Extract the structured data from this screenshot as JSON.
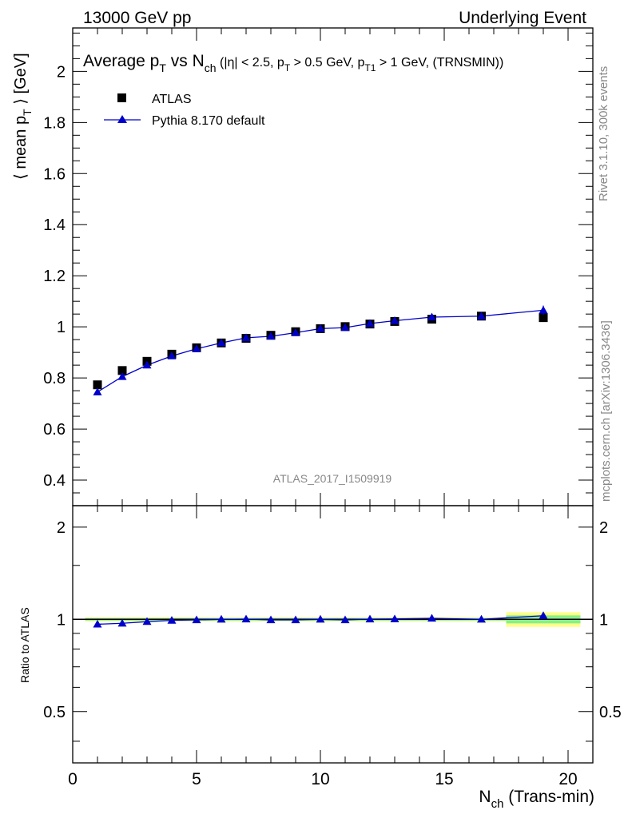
{
  "header": {
    "left": "13000 GeV pp",
    "right": "Underlying Event"
  },
  "title": {
    "main": "Average p",
    "main_sub": "T",
    "vs": " vs N",
    "vs_sub": "ch",
    "cuts_1": " (|η| < 2.5, p",
    "cuts_1_sub": "T",
    "cuts_2": " > 0.5 GeV, p",
    "cuts_2_sub": "T1",
    "cuts_3": " > 1 GeV, (TRNSMIN))"
  },
  "side_text": {
    "rivet": "Rivet 3.1.10,  300k events",
    "mcplots": "mcplots.cern.ch [arXiv:1306.3436]"
  },
  "watermark": "ATLAS_2017_I1509919",
  "legend": {
    "data_label": "ATLAS",
    "mc_label": "Pythia 8.170 default"
  },
  "axes": {
    "ylabel_main_pre": "⟨ mean p",
    "ylabel_main_sub": "T",
    "ylabel_main_post": " ⟩ [GeV]",
    "ylabel_ratio": "Ratio to ATLAS",
    "xlabel_pre": "N",
    "xlabel_sub": "ch",
    "xlabel_post": " (Trans-min)"
  },
  "colors": {
    "data": "#000000",
    "mc": "#0000cc",
    "band_inner": "#88ee88",
    "band_outer": "#ffff88"
  },
  "chart_data": [
    {
      "type": "scatter",
      "xlim": [
        0,
        21
      ],
      "ylim": [
        0.3,
        2.17
      ],
      "yticks": [
        0.4,
        0.6,
        0.8,
        1.0,
        1.2,
        1.4,
        1.6,
        1.8,
        2.0
      ],
      "ytick_labels": [
        "0.4",
        "0.6",
        "0.8",
        "1",
        "1.2",
        "1.4",
        "1.6",
        "1.8",
        "2"
      ],
      "series": [
        {
          "name": "ATLAS",
          "x": [
            1,
            2,
            3,
            4,
            5,
            6,
            7,
            8,
            9,
            10,
            11,
            12,
            13,
            14.5,
            16.5,
            19
          ],
          "values": [
            0.773,
            0.829,
            0.865,
            0.893,
            0.918,
            0.937,
            0.955,
            0.967,
            0.981,
            0.993,
            1.001,
            1.011,
            1.021,
            1.03,
            1.042,
            1.036
          ]
        },
        {
          "name": "Pythia 8.170 default",
          "x": [
            1,
            2,
            3,
            4,
            5,
            6,
            7,
            8,
            9,
            10,
            11,
            12,
            13,
            14.5,
            16.5,
            19
          ],
          "values": [
            0.745,
            0.805,
            0.85,
            0.886,
            0.914,
            0.937,
            0.957,
            0.963,
            0.977,
            0.993,
            0.997,
            1.013,
            1.024,
            1.038,
            1.042,
            1.065
          ],
          "errors": [
            0,
            0,
            0,
            0,
            0,
            0,
            0,
            0,
            0,
            0,
            0,
            0,
            0,
            0,
            0.006,
            0.018
          ]
        }
      ]
    },
    {
      "type": "line",
      "scale": "log",
      "xlim": [
        0,
        21
      ],
      "ylim": [
        0.34,
        2.35
      ],
      "yticks": [
        0.5,
        1,
        2
      ],
      "ytick_labels": [
        "0.5",
        "1",
        "2"
      ],
      "xticks": [
        0,
        5,
        10,
        15,
        20
      ],
      "xtick_labels": [
        "0",
        "5",
        "10",
        "15",
        "20"
      ],
      "series": [
        {
          "name": "Pythia 8.170 default",
          "x": [
            1,
            2,
            3,
            4,
            5,
            6,
            7,
            8,
            9,
            10,
            11,
            12,
            13,
            14.5,
            16.5,
            19
          ],
          "values": [
            0.964,
            0.971,
            0.983,
            0.992,
            0.996,
            1.0,
            1.002,
            0.996,
            0.996,
            1.0,
            0.996,
            1.002,
            1.003,
            1.008,
            1.0,
            1.028
          ]
        }
      ],
      "bands": [
        {
          "x": [
            0.5,
            17.5
          ],
          "inner": [
            0.99,
            1.01
          ],
          "outer": [
            0.985,
            1.015
          ]
        },
        {
          "x": [
            17.5,
            20.5
          ],
          "inner": [
            0.97,
            1.03
          ],
          "outer": [
            0.945,
            1.055
          ]
        }
      ]
    }
  ]
}
